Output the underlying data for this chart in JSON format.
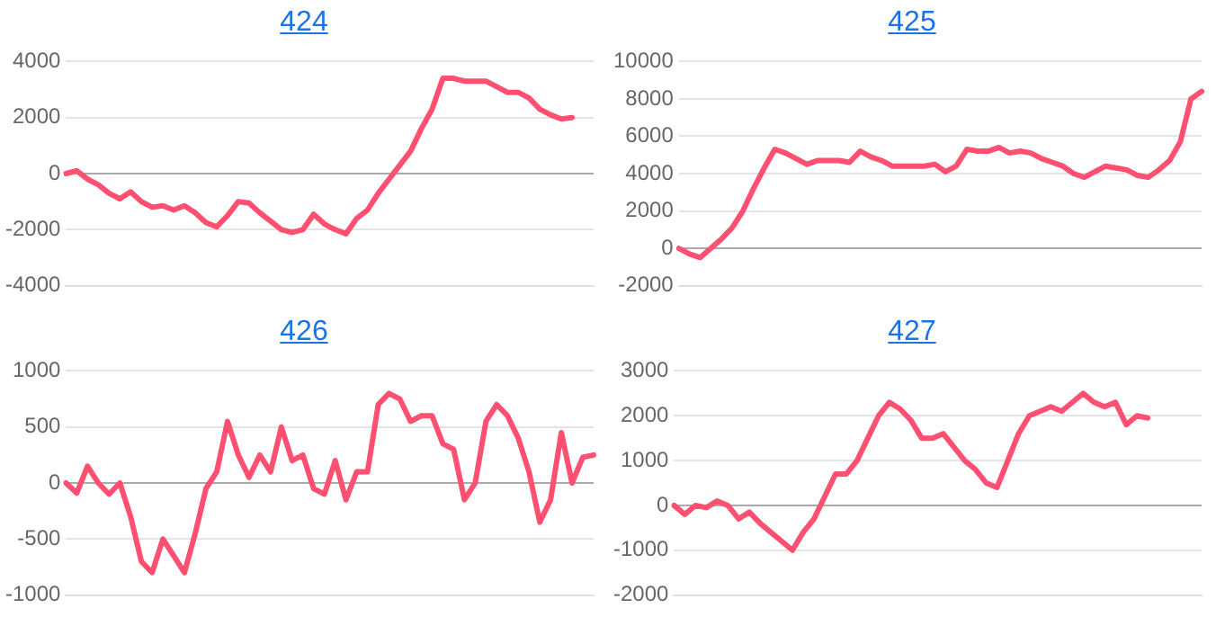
{
  "chart_data": [
    {
      "type": "line",
      "title": "424",
      "categories": [
        null,
        null,
        null,
        null,
        null,
        null,
        null,
        null,
        null,
        null,
        null,
        null,
        null,
        null,
        null,
        null,
        null,
        null,
        null,
        null,
        null,
        null,
        null,
        null,
        null,
        null,
        null,
        null,
        null,
        null,
        null,
        null,
        null,
        null,
        null,
        null,
        null,
        null,
        null,
        null,
        null,
        null,
        null,
        null,
        null,
        null,
        null,
        null,
        null,
        null
      ],
      "series": [
        {
          "color": "#ff5072",
          "values": [
            0,
            100,
            -200,
            -400,
            -700,
            -900,
            -650,
            -1000,
            -1200,
            -1150,
            -1300,
            -1150,
            -1400,
            -1750,
            -1900,
            -1500,
            -1000,
            -1050,
            -1400,
            -1700,
            -2000,
            -2100,
            -2000,
            -1450,
            -1800,
            -2000,
            -2150,
            -1600,
            -1300,
            -700,
            -200,
            300,
            800,
            1600,
            2300,
            3400,
            3400,
            3300,
            3300,
            3300,
            3100,
            2900,
            2900,
            2700,
            2300,
            2100,
            1950,
            2000,
            null,
            null
          ]
        }
      ],
      "ylim": [
        -4000,
        4000
      ],
      "yticks": [
        -4000,
        -2000,
        0,
        2000,
        4000
      ],
      "grid": "y",
      "tick_labels": "y",
      "marker": "none",
      "line_style": "solid",
      "legend": false
    },
    {
      "type": "line",
      "title": "425",
      "categories": [
        null,
        null,
        null,
        null,
        null,
        null,
        null,
        null,
        null,
        null,
        null,
        null,
        null,
        null,
        null,
        null,
        null,
        null,
        null,
        null,
        null,
        null,
        null,
        null,
        null,
        null,
        null,
        null,
        null,
        null,
        null,
        null,
        null,
        null,
        null,
        null,
        null,
        null,
        null,
        null,
        null,
        null,
        null,
        null,
        null,
        null,
        null,
        null,
        null,
        null
      ],
      "series": [
        {
          "color": "#ff5072",
          "values": [
            0,
            -300,
            -500,
            0,
            500,
            1100,
            2000,
            3200,
            4300,
            5300,
            5100,
            4800,
            4500,
            4700,
            4700,
            4700,
            4600,
            5200,
            4900,
            4700,
            4400,
            4400,
            4400,
            4400,
            4500,
            4100,
            4400,
            5300,
            5200,
            5200,
            5400,
            5100,
            5200,
            5100,
            4800,
            4600,
            4400,
            4000,
            3800,
            4100,
            4400,
            4300,
            4200,
            3900,
            3800,
            4200,
            4700,
            5700,
            8000,
            8400
          ]
        }
      ],
      "ylim": [
        -2000,
        10000
      ],
      "yticks": [
        -2000,
        0,
        2000,
        4000,
        6000,
        8000,
        10000
      ],
      "grid": "y",
      "tick_labels": "y",
      "marker": "none",
      "line_style": "solid",
      "legend": false
    },
    {
      "type": "line",
      "title": "426",
      "categories": [
        null,
        null,
        null,
        null,
        null,
        null,
        null,
        null,
        null,
        null,
        null,
        null,
        null,
        null,
        null,
        null,
        null,
        null,
        null,
        null,
        null,
        null,
        null,
        null,
        null,
        null,
        null,
        null,
        null,
        null,
        null,
        null,
        null,
        null,
        null,
        null,
        null,
        null,
        null,
        null,
        null,
        null,
        null,
        null,
        null,
        null,
        null,
        null,
        null,
        null
      ],
      "series": [
        {
          "color": "#ff5072",
          "values": [
            0,
            -90,
            150,
            0,
            -100,
            0,
            -300,
            -700,
            -800,
            -500,
            -650,
            -800,
            -450,
            -50,
            100,
            550,
            250,
            50,
            250,
            100,
            500,
            200,
            250,
            -50,
            -100,
            200,
            -150,
            100,
            100,
            700,
            800,
            750,
            550,
            600,
            600,
            350,
            300,
            -150,
            0,
            550,
            700,
            600,
            400,
            100,
            -350,
            -150,
            450,
            0,
            230,
            250
          ]
        }
      ],
      "ylim": [
        -1000,
        1000
      ],
      "yticks": [
        -1000,
        -500,
        0,
        500,
        1000
      ],
      "grid": "y",
      "tick_labels": "y",
      "marker": "none",
      "line_style": "solid",
      "legend": false
    },
    {
      "type": "line",
      "title": "427",
      "categories": [
        null,
        null,
        null,
        null,
        null,
        null,
        null,
        null,
        null,
        null,
        null,
        null,
        null,
        null,
        null,
        null,
        null,
        null,
        null,
        null,
        null,
        null,
        null,
        null,
        null,
        null,
        null,
        null,
        null,
        null,
        null,
        null,
        null,
        null,
        null,
        null,
        null,
        null,
        null,
        null,
        null,
        null,
        null,
        null,
        null,
        null,
        null,
        null,
        null,
        null
      ],
      "series": [
        {
          "color": "#ff5072",
          "values": [
            0,
            -200,
            0,
            -50,
            100,
            0,
            -300,
            -150,
            -400,
            -600,
            -800,
            -1000,
            -600,
            -300,
            200,
            700,
            700,
            1000,
            1500,
            2000,
            2300,
            2150,
            1900,
            1500,
            1500,
            1600,
            1300,
            1000,
            800,
            500,
            400,
            1000,
            1600,
            2000,
            2100,
            2200,
            2100,
            2300,
            2500,
            2300,
            2200,
            2300,
            1800,
            2000,
            1950,
            null,
            null,
            null,
            null,
            null
          ]
        }
      ],
      "ylim": [
        -2000,
        3000
      ],
      "yticks": [
        -2000,
        -1000,
        0,
        1000,
        2000,
        3000
      ],
      "grid": "y",
      "tick_labels": "y",
      "marker": "none",
      "line_style": "solid",
      "legend": false
    }
  ]
}
